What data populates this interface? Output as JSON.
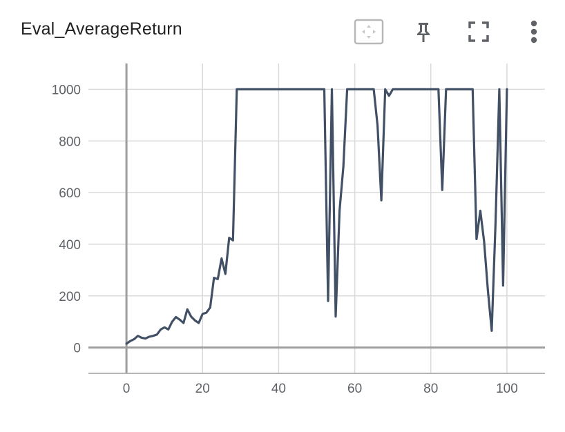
{
  "card": {
    "title": "Eval_AverageReturn"
  },
  "toolbar": {
    "icons": [
      "fit-domain-icon",
      "pin-icon",
      "fullscreen-icon",
      "more-vert-icon"
    ]
  },
  "colors": {
    "line": "#425066",
    "grid": "#dadada",
    "axis": "#9e9e9e",
    "tick_text": "#5f6368"
  },
  "chart_data": {
    "type": "line",
    "title": "Eval_AverageReturn",
    "xlabel": "",
    "ylabel": "",
    "xlim": [
      -10,
      110
    ],
    "ylim": [
      -100,
      1100
    ],
    "xticks": [
      0,
      20,
      40,
      60,
      80,
      100
    ],
    "yticks": [
      0,
      200,
      400,
      600,
      800,
      1000
    ],
    "grid": true,
    "series": [
      {
        "x": [
          0,
          1,
          2,
          3,
          4,
          5,
          6,
          7,
          8,
          9,
          10,
          11,
          12,
          13,
          14,
          15,
          16,
          17,
          18,
          19,
          20,
          21,
          22,
          23,
          24,
          25,
          26,
          27,
          28,
          29,
          30,
          31,
          32,
          33,
          34,
          35,
          36,
          37,
          38,
          39,
          40,
          41,
          42,
          43,
          44,
          45,
          46,
          47,
          48,
          49,
          50,
          51,
          52,
          53,
          54,
          55,
          56,
          57,
          58,
          59,
          60,
          61,
          62,
          63,
          64,
          65,
          66,
          67,
          68,
          69,
          70,
          71,
          72,
          73,
          74,
          75,
          76,
          77,
          78,
          79,
          80,
          81,
          82,
          83,
          84,
          85,
          86,
          87,
          88,
          89,
          90,
          91,
          92,
          93,
          94,
          95,
          96,
          97,
          98,
          99,
          100
        ],
        "y": [
          15,
          25,
          32,
          45,
          38,
          35,
          42,
          45,
          50,
          70,
          78,
          70,
          100,
          118,
          108,
          95,
          148,
          120,
          105,
          95,
          130,
          135,
          155,
          270,
          265,
          345,
          285,
          425,
          415,
          1000,
          1000,
          1000,
          1000,
          1000,
          1000,
          1000,
          1000,
          1000,
          1000,
          1000,
          1000,
          1000,
          1000,
          1000,
          1000,
          1000,
          1000,
          1000,
          1000,
          1000,
          1000,
          1000,
          1000,
          180,
          1000,
          120,
          530,
          700,
          1000,
          1000,
          1000,
          1000,
          1000,
          1000,
          1000,
          1000,
          860,
          570,
          1000,
          975,
          1000,
          1000,
          1000,
          1000,
          1000,
          1000,
          1000,
          1000,
          1000,
          1000,
          1000,
          1000,
          1000,
          610,
          1000,
          1000,
          1000,
          1000,
          1000,
          1000,
          1000,
          1000,
          420,
          530,
          410,
          220,
          65,
          480,
          1000,
          240,
          1000
        ]
      }
    ]
  }
}
